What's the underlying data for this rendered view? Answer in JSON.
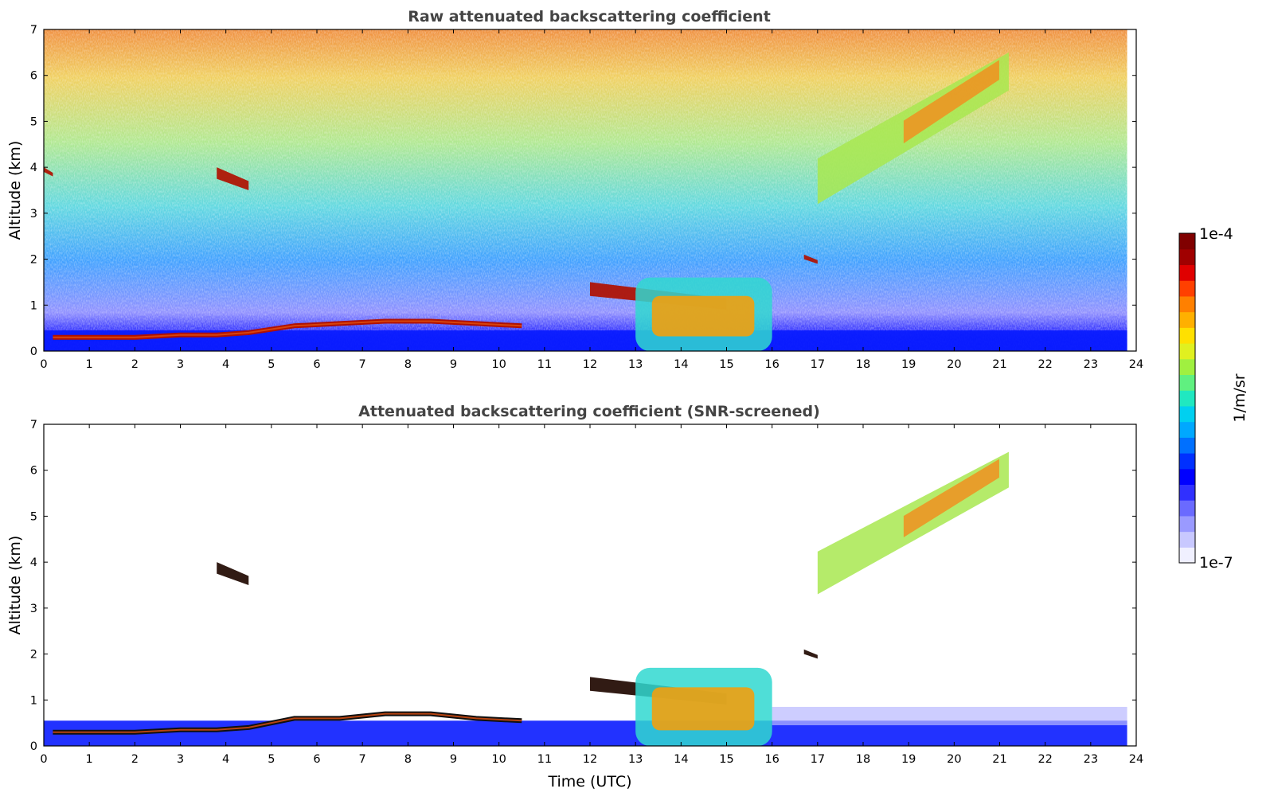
{
  "chart_data": [
    {
      "type": "heatmap",
      "title": "Raw attenuated backscattering coefficient",
      "xlabel": "",
      "ylabel": "Altitude (km)",
      "xlim": [
        0,
        24
      ],
      "ylim": [
        0,
        7
      ],
      "xticks": [
        "0",
        "1",
        "2",
        "3",
        "4",
        "5",
        "6",
        "7",
        "8",
        "9",
        "10",
        "11",
        "12",
        "13",
        "14",
        "15",
        "16",
        "17",
        "18",
        "19",
        "20",
        "21",
        "22",
        "23",
        "24"
      ],
      "yticks": [
        "0",
        "1",
        "2",
        "3",
        "4",
        "5",
        "6",
        "7"
      ],
      "data_end_hour": 23.8,
      "colorscale": "log",
      "features": [
        {
          "kind": "boundary_layer_top",
          "points": [
            [
              0.2,
              0.3
            ],
            [
              1.0,
              0.3
            ],
            [
              2.0,
              0.3
            ],
            [
              3.0,
              0.35
            ],
            [
              3.8,
              0.35
            ],
            [
              4.5,
              0.4
            ],
            [
              5.5,
              0.55
            ],
            [
              6.5,
              0.6
            ],
            [
              7.5,
              0.65
            ],
            [
              8.5,
              0.65
            ],
            [
              9.5,
              0.6
            ],
            [
              10.5,
              0.55
            ]
          ]
        },
        {
          "kind": "cloud",
          "x": [
            12.0,
            15.0
          ],
          "y": [
            0.9,
            1.5
          ]
        },
        {
          "kind": "cloud",
          "x": [
            3.8,
            4.5
          ],
          "y": [
            3.5,
            4.0
          ]
        },
        {
          "kind": "cloud",
          "x": [
            16.7,
            17.0
          ],
          "y": [
            1.9,
            2.1
          ]
        },
        {
          "kind": "cloud",
          "x": [
            0.0,
            0.2
          ],
          "y": [
            3.8,
            4.0
          ]
        },
        {
          "kind": "aerosol_layer",
          "x": [
            17.0,
            21.2
          ],
          "y": [
            3.2,
            6.5
          ]
        },
        {
          "kind": "aerosol_layer",
          "x": [
            13.0,
            16.0
          ],
          "y": [
            0.0,
            1.6
          ]
        }
      ]
    },
    {
      "type": "heatmap",
      "title": "Attenuated backscattering coefficient (SNR-screened)",
      "xlabel": "Time (UTC)",
      "ylabel": "Altitude (km)",
      "xlim": [
        0,
        24
      ],
      "ylim": [
        0,
        7
      ],
      "xticks": [
        "0",
        "1",
        "2",
        "3",
        "4",
        "5",
        "6",
        "7",
        "8",
        "9",
        "10",
        "11",
        "12",
        "13",
        "14",
        "15",
        "16",
        "17",
        "18",
        "19",
        "20",
        "21",
        "22",
        "23",
        "24"
      ],
      "yticks": [
        "0",
        "1",
        "2",
        "3",
        "4",
        "5",
        "6",
        "7"
      ],
      "data_end_hour": 23.8,
      "colorscale": "log",
      "features": [
        {
          "kind": "boundary_layer_top",
          "points": [
            [
              0.2,
              0.3
            ],
            [
              1.0,
              0.3
            ],
            [
              2.0,
              0.3
            ],
            [
              3.0,
              0.35
            ],
            [
              3.8,
              0.35
            ],
            [
              4.5,
              0.4
            ],
            [
              5.5,
              0.6
            ],
            [
              6.5,
              0.6
            ],
            [
              7.5,
              0.7
            ],
            [
              8.5,
              0.7
            ],
            [
              9.5,
              0.6
            ],
            [
              10.5,
              0.55
            ]
          ]
        },
        {
          "kind": "cloud",
          "x": [
            12.0,
            15.0
          ],
          "y": [
            0.9,
            1.5
          ]
        },
        {
          "kind": "cloud",
          "x": [
            3.8,
            4.5
          ],
          "y": [
            3.5,
            4.0
          ]
        },
        {
          "kind": "cloud",
          "x": [
            16.7,
            17.0
          ],
          "y": [
            1.9,
            2.1
          ]
        },
        {
          "kind": "aerosol_layer",
          "x": [
            17.0,
            21.2
          ],
          "y": [
            3.3,
            6.4
          ]
        },
        {
          "kind": "aerosol_layer",
          "x": [
            13.0,
            16.0
          ],
          "y": [
            0.0,
            1.7
          ]
        }
      ]
    }
  ],
  "colorbar": {
    "label": "1/m/sr",
    "max_label": "1e-4",
    "min_label": "1e-7",
    "colors": [
      "#f0f0ff",
      "#c8c8ff",
      "#9a9aff",
      "#6a6aff",
      "#3030ff",
      "#0000ff",
      "#0030ff",
      "#0070ff",
      "#00a8ff",
      "#00d0f0",
      "#20e8c0",
      "#60f080",
      "#a0f040",
      "#e0f020",
      "#ffe000",
      "#ffb000",
      "#ff8000",
      "#ff4000",
      "#e00000",
      "#a00000",
      "#800000"
    ]
  }
}
